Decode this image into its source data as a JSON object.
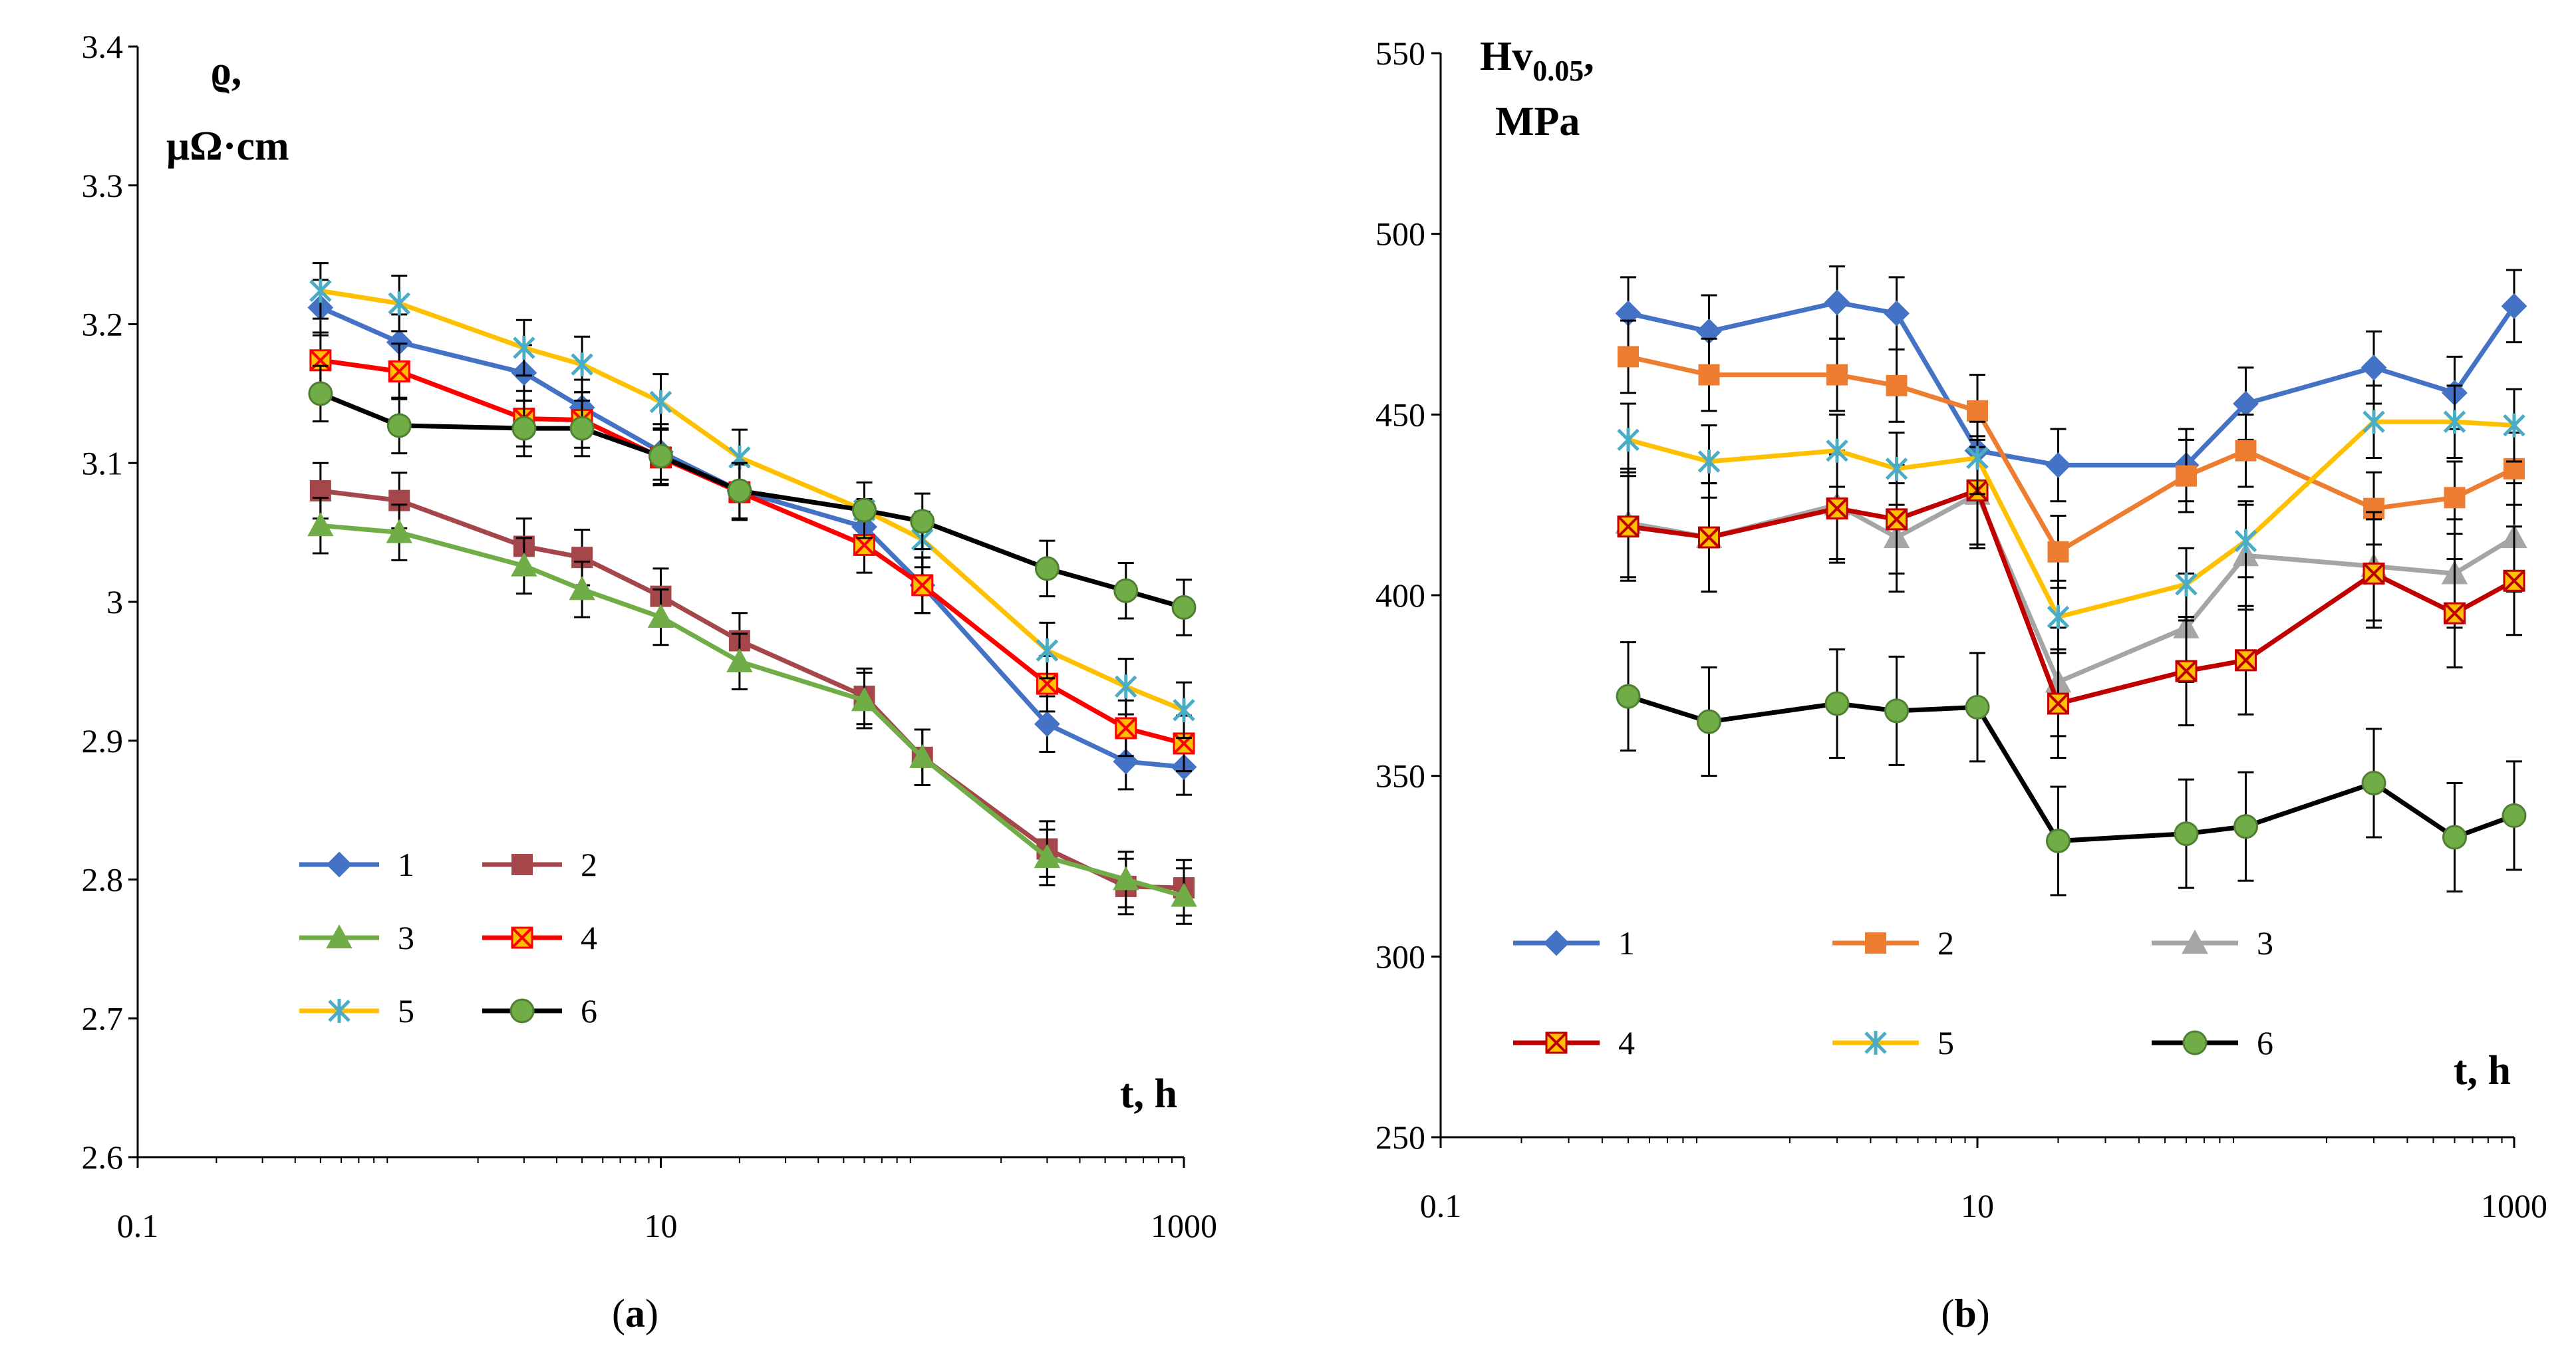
{
  "chart_data": [
    {
      "type": "line",
      "panel": "a",
      "caption": {
        "open": "(",
        "letter": "a",
        "close": ")"
      },
      "ylabel_lines": [
        "ϱ,",
        "μΩ·cm"
      ],
      "xlabel": "t, h",
      "x_scale": "log",
      "xlim": [
        0.1,
        1000
      ],
      "ylim": [
        2.6,
        3.4
      ],
      "x_ticks": [
        0.1,
        10,
        1000
      ],
      "x_tick_labels": [
        "0.1",
        "10",
        "1000"
      ],
      "y_ticks": [
        2.6,
        2.7,
        2.8,
        2.9,
        3,
        3.1,
        3.2,
        3.3,
        3.4
      ],
      "y_tick_labels": [
        "2.6",
        "2.7",
        "2.8",
        "2.9",
        "3",
        "3.1",
        "3.2",
        "3.3",
        "3.4"
      ],
      "grid": false,
      "legend_position": "bottom-left",
      "legend_columns": 2,
      "x": [
        0.5,
        1,
        3,
        5,
        10,
        20,
        60,
        100,
        300,
        600,
        1000
      ],
      "series": [
        {
          "name": "1",
          "color": "#4472C4",
          "marker": "diamond",
          "values": [
            3.212,
            3.187,
            3.165,
            3.14,
            3.108,
            3.08,
            3.054,
            3.012,
            2.912,
            2.885,
            2.881
          ],
          "error": 0.02
        },
        {
          "name": "2",
          "color": "#A5464A",
          "marker": "square",
          "values": [
            3.08,
            3.073,
            3.04,
            3.032,
            3.004,
            2.972,
            2.932,
            2.888,
            2.822,
            2.795,
            2.794
          ],
          "error": 0.02
        },
        {
          "name": "3",
          "color": "#70AD47",
          "marker": "triangle",
          "values": [
            3.055,
            3.05,
            3.026,
            3.009,
            2.989,
            2.957,
            2.929,
            2.888,
            2.816,
            2.8,
            2.788
          ],
          "error": 0.02
        },
        {
          "name": "4",
          "color": "#FF0000",
          "marker": "x-box",
          "values": [
            3.174,
            3.166,
            3.132,
            3.131,
            3.104,
            3.079,
            3.041,
            3.012,
            2.941,
            2.909,
            2.898
          ],
          "error": 0.02
        },
        {
          "name": "5",
          "color": "#FFC000",
          "marker": "asterisk",
          "values": [
            3.224,
            3.215,
            3.183,
            3.171,
            3.144,
            3.104,
            3.066,
            3.045,
            2.965,
            2.939,
            2.922
          ],
          "error": 0.02
        },
        {
          "name": "6",
          "color": "#000000",
          "marker": "circle",
          "values": [
            3.15,
            3.127,
            3.125,
            3.125,
            3.105,
            3.08,
            3.066,
            3.058,
            3.024,
            3.008,
            2.996
          ],
          "error": 0.02
        }
      ]
    },
    {
      "type": "line",
      "panel": "b",
      "caption": {
        "open": "(",
        "letter": "b",
        "close": ")"
      },
      "ylabel_lines": [
        "Hv",
        "0.05",
        ",",
        "MPa"
      ],
      "xlabel": "t, h",
      "x_scale": "log",
      "xlim": [
        0.1,
        1000
      ],
      "ylim": [
        250,
        550
      ],
      "x_ticks": [
        0.1,
        10,
        1000
      ],
      "x_tick_labels": [
        "0.1",
        "10",
        "1000"
      ],
      "y_ticks": [
        250,
        300,
        350,
        400,
        450,
        500,
        550
      ],
      "y_tick_labels": [
        "250",
        "300",
        "350",
        "400",
        "450",
        "500",
        "550"
      ],
      "grid": false,
      "legend_position": "bottom-left",
      "legend_columns": 3,
      "x": [
        0.5,
        1,
        3,
        5,
        10,
        20,
        60,
        100,
        300,
        600,
        1000
      ],
      "series": [
        {
          "name": "1",
          "color": "#4472C4",
          "marker": "diamond",
          "values": [
            478,
            473,
            481,
            478,
            440,
            436,
            436,
            453,
            463,
            456,
            480
          ],
          "error": 10
        },
        {
          "name": "2",
          "color": "#ED7D31",
          "marker": "square",
          "values": [
            466,
            461,
            461,
            458,
            451,
            412,
            433,
            440,
            424,
            427,
            435
          ],
          "error": 10
        },
        {
          "name": "3",
          "color": "#A5A5A5",
          "marker": "triangle",
          "values": [
            420,
            416,
            425,
            416,
            428,
            376,
            391,
            411,
            408,
            406,
            416
          ],
          "error": 15
        },
        {
          "name": "4",
          "color": "#C00000",
          "marker": "x-box",
          "values": [
            419,
            416,
            424,
            421,
            429,
            370,
            379,
            382,
            406,
            395,
            404
          ],
          "error": 15
        },
        {
          "name": "5",
          "color": "#FFC000",
          "marker": "asterisk",
          "values": [
            443,
            437,
            440,
            435,
            438,
            394,
            403,
            415,
            448,
            448,
            447
          ],
          "error": 10
        },
        {
          "name": "6",
          "color": "#000000",
          "marker": "circle",
          "values": [
            372,
            365,
            370,
            368,
            369,
            332,
            334,
            336,
            348,
            333,
            339
          ],
          "error": 15
        }
      ]
    }
  ]
}
